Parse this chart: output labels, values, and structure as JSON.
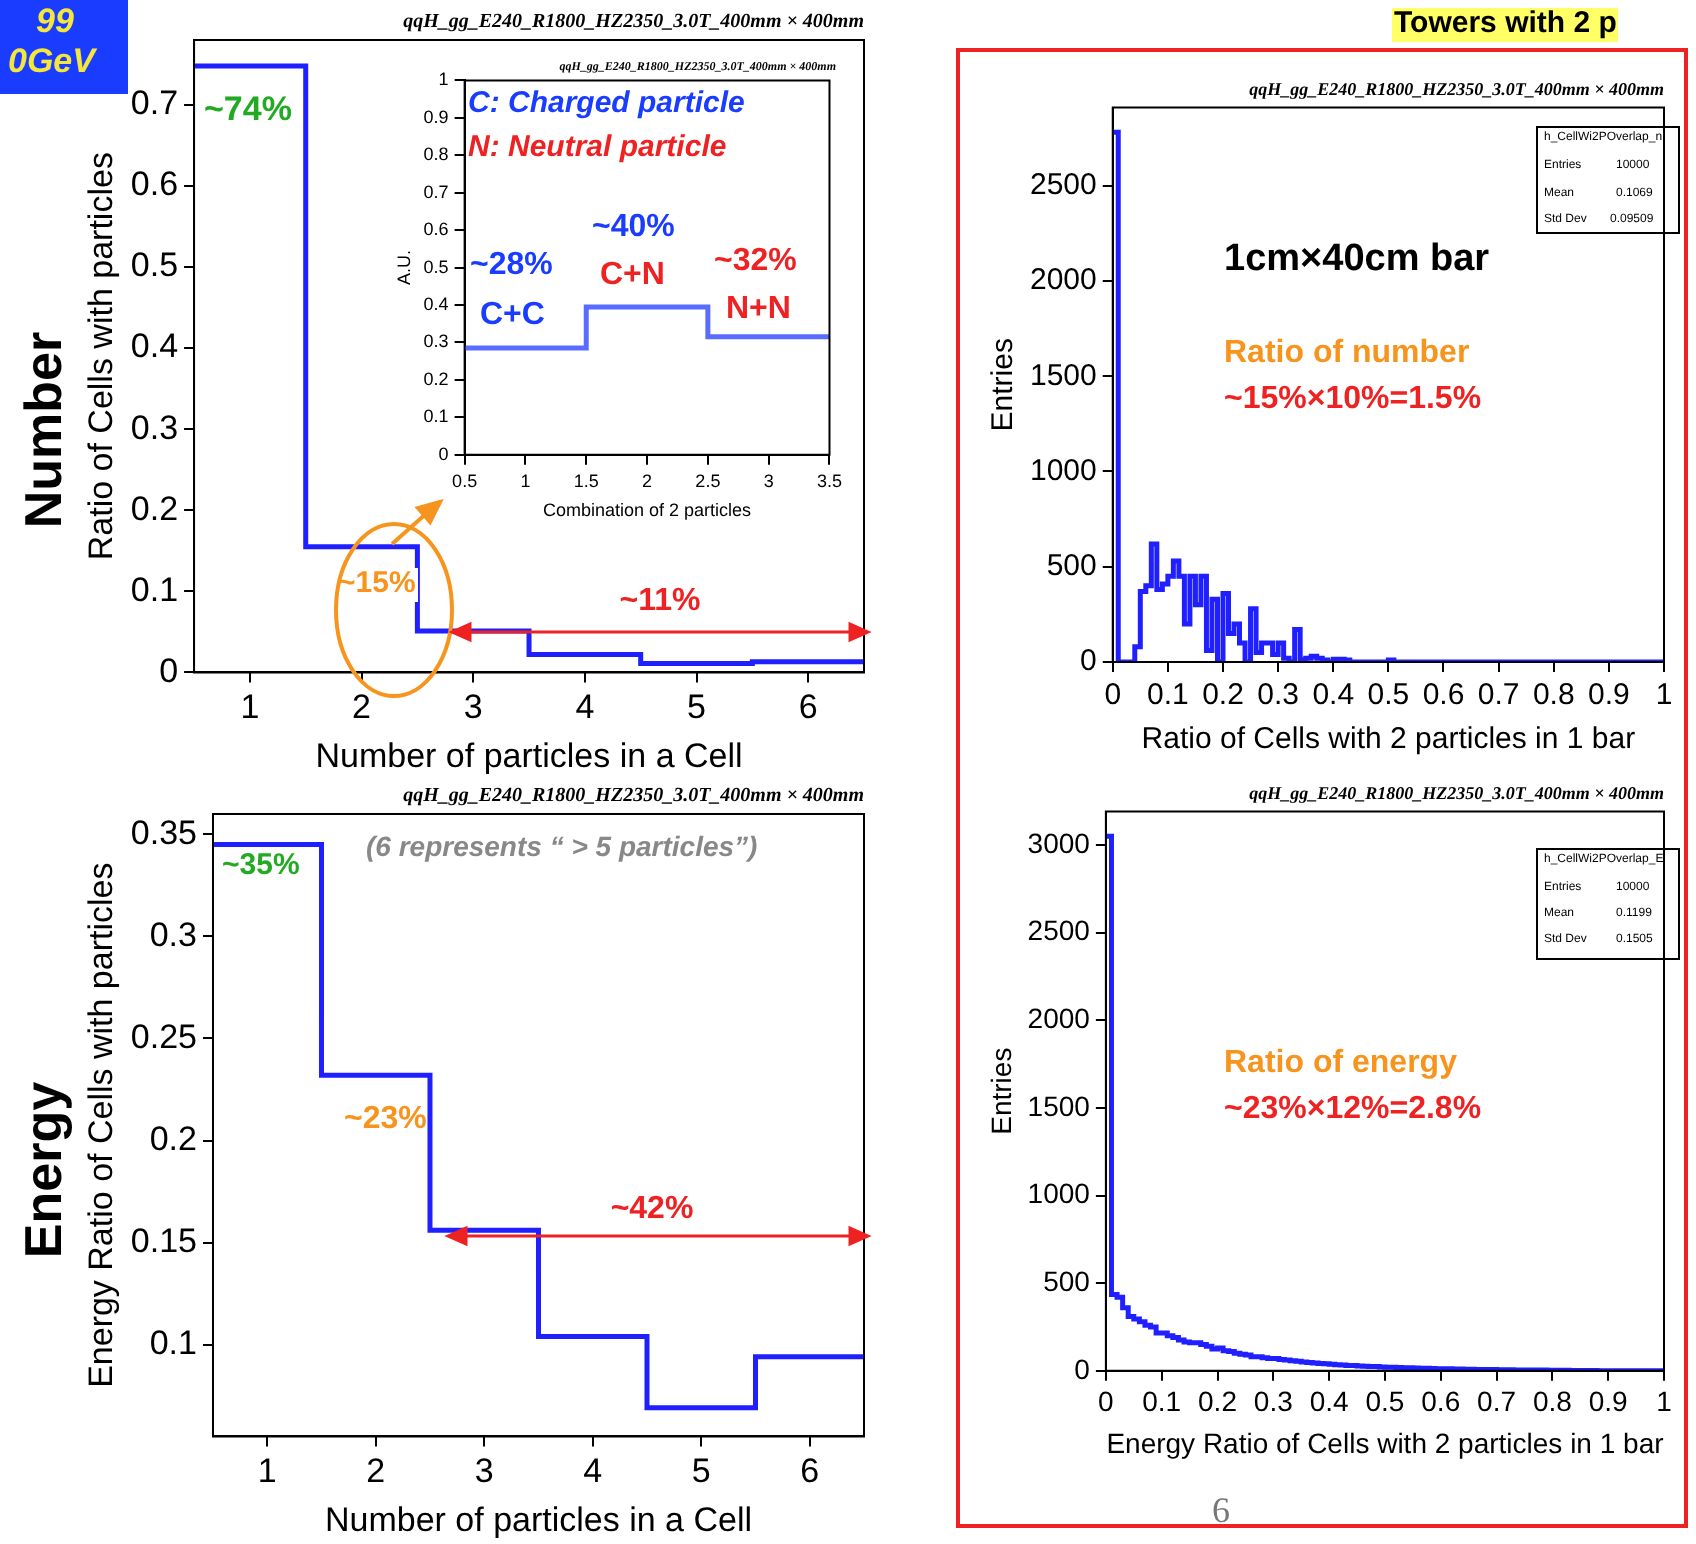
{
  "chart_data": [
    {
      "type": "histogram",
      "title": "qqH_gg_E240_R1800_HZ2350_3.0T_400mm × 400mm",
      "xlabel": "Number of particles in a Cell",
      "ylabel": "Ratio of Cells with particles",
      "bins": [
        0.5,
        1.5,
        2.5,
        3.5,
        4.5,
        5.5,
        6.5
      ],
      "values": [
        0.748,
        0.155,
        0.051,
        0.022,
        0.011,
        0.013
      ],
      "color": "#1f1fff",
      "xlim": [
        0.5,
        6.5
      ],
      "xticks": [
        1,
        2,
        3,
        4,
        5,
        6
      ],
      "ylim": [
        0,
        0.78
      ],
      "yticks": [
        0,
        0.1,
        0.2,
        0.3,
        0.4,
        0.5,
        0.6,
        0.7
      ],
      "annotations": [
        "~74%",
        "~15%",
        "~11%",
        "Number",
        "99",
        "0GeV"
      ]
    },
    {
      "type": "histogram",
      "title": "qqH_gg_E240_R1800_HZ2350_3.0T_400mm × 400mm",
      "xlabel": "Combination of 2 particles",
      "ylabel": "A.U.",
      "bins": [
        0.5,
        1.5,
        2.5,
        3.5
      ],
      "values": [
        0.285,
        0.395,
        0.315
      ],
      "color": "#5a6cff",
      "xlim": [
        0.5,
        3.5
      ],
      "xticks": [
        0.5,
        1,
        1.5,
        2,
        2.5,
        3,
        3.5
      ],
      "ylim": [
        0,
        1
      ],
      "yticks": [
        0,
        0.1,
        0.2,
        0.3,
        0.4,
        0.5,
        0.6,
        0.7,
        0.8,
        0.9,
        1
      ],
      "annotations": [
        "C: Charged particle",
        "N: Neutral particle",
        "~28%",
        "C+C",
        "~40%",
        "C+N",
        "~32%",
        "N+N"
      ]
    },
    {
      "type": "histogram",
      "title": "qqH_gg_E240_R1800_HZ2350_3.0T_400mm × 400mm",
      "xlabel": "Number of particles in a Cell",
      "ylabel": "Energy Ratio of Cells with particles",
      "bins": [
        0.5,
        1.5,
        2.5,
        3.5,
        4.5,
        5.5,
        6.5
      ],
      "values": [
        0.345,
        0.232,
        0.156,
        0.104,
        0.069,
        0.094
      ],
      "color": "#1f1fff",
      "xlim": [
        0.5,
        6.5
      ],
      "xticks": [
        1,
        2,
        3,
        4,
        5,
        6
      ],
      "ylim": [
        0.055,
        0.36
      ],
      "yticks": [
        0.1,
        0.15,
        0.2,
        0.25,
        0.3,
        0.35
      ],
      "annotations": [
        "~35%",
        "~23%",
        "~42%",
        "(6 represents “ > 5 particles”)",
        "Energy"
      ]
    },
    {
      "type": "histogram",
      "title": "qqH_gg_E240_R1800_HZ2350_3.0T_400mm × 400mm",
      "xlabel": "Ratio of Cells with 2 particles in 1 bar",
      "ylabel": "Entries",
      "bins": [
        0,
        0.01,
        0.02,
        0.03,
        0.04,
        0.05,
        0.06,
        0.07,
        0.08,
        0.09,
        0.1,
        0.11,
        0.12,
        0.13,
        0.14,
        0.15,
        0.16,
        0.17,
        0.18,
        0.19,
        0.2,
        0.21,
        0.22,
        0.23,
        0.24,
        0.25,
        0.26,
        0.27,
        0.28,
        0.29,
        0.3,
        0.31,
        0.32,
        0.33,
        0.34,
        0.35,
        0.36,
        0.37,
        0.38,
        0.39,
        0.4,
        0.41,
        0.42,
        0.43,
        0.44,
        0.45,
        0.46,
        0.47,
        0.48,
        0.49,
        0.5,
        0.51,
        0.52,
        0.53,
        0.54,
        0.55,
        0.56,
        0.57,
        0.58,
        0.59,
        0.6,
        0.61,
        0.62,
        0.63,
        0.64,
        0.65,
        0.66,
        0.67,
        0.68,
        0.69,
        0.7,
        0.71,
        0.72,
        0.73,
        0.74,
        0.75,
        0.76,
        0.77,
        0.78,
        0.79,
        0.8,
        0.81,
        0.82,
        0.83,
        0.84,
        0.85,
        0.86,
        0.87,
        0.88,
        0.89,
        0.9,
        0.91,
        0.92,
        0.93,
        0.94,
        0.95,
        0.96,
        0.97,
        0.98,
        0.99,
        1
      ],
      "values": [
        2780,
        0,
        0,
        0,
        80,
        370,
        400,
        620,
        380,
        410,
        450,
        530,
        450,
        200,
        450,
        300,
        450,
        60,
        330,
        0,
        360,
        150,
        200,
        100,
        0,
        280,
        50,
        100,
        100,
        40,
        100,
        20,
        0,
        170,
        10,
        20,
        30,
        20,
        10,
        0,
        15,
        15,
        10,
        0,
        0,
        0,
        0,
        0,
        0,
        0,
        10,
        0,
        0,
        0,
        0,
        0,
        0,
        0,
        0,
        0,
        0,
        0,
        0,
        0,
        0,
        0,
        0,
        0,
        0,
        0,
        0,
        0,
        0,
        0,
        0,
        0,
        0,
        0,
        0,
        0,
        0,
        0,
        0,
        0,
        0,
        0,
        0,
        0,
        0,
        0,
        0,
        0,
        0,
        0,
        0,
        0,
        0,
        0,
        0,
        0
      ],
      "color": "#1f1fff",
      "xlim": [
        0,
        1
      ],
      "xticks": [
        0,
        0.1,
        0.2,
        0.3,
        0.4,
        0.5,
        0.6,
        0.7,
        0.8,
        0.9,
        1
      ],
      "ylim": [
        0,
        2910
      ],
      "yticks": [
        0,
        500,
        1000,
        1500,
        2000,
        2500
      ],
      "annotations": [
        "Towers with 2 p",
        "h_CellWi2POverlap_n",
        "Entries",
        "10000",
        "Mean",
        "0.1069",
        "Std Dev",
        "0.09509",
        "1cm×40cm bar",
        "Ratio of number",
        "~15%×10%=1.5%"
      ]
    },
    {
      "type": "histogram",
      "title": "qqH_gg_E240_R1800_HZ2350_3.0T_400mm × 400mm",
      "xlabel": "Energy Ratio of Cells with 2 particles in 1 bar",
      "ylabel": "Entries",
      "bins": [
        0,
        0.01,
        0.02,
        0.03,
        0.04,
        0.05,
        0.06,
        0.07,
        0.08,
        0.09,
        0.1,
        0.11,
        0.12,
        0.13,
        0.14,
        0.15,
        0.16,
        0.17,
        0.18,
        0.19,
        0.2,
        0.21,
        0.22,
        0.23,
        0.24,
        0.25,
        0.26,
        0.27,
        0.28,
        0.29,
        0.3,
        0.31,
        0.32,
        0.33,
        0.34,
        0.35,
        0.36,
        0.37,
        0.38,
        0.39,
        0.4,
        0.41,
        0.42,
        0.43,
        0.44,
        0.45,
        0.46,
        0.47,
        0.48,
        0.49,
        0.5,
        0.51,
        0.52,
        0.53,
        0.54,
        0.55,
        0.56,
        0.57,
        0.58,
        0.59,
        0.6,
        0.61,
        0.62,
        0.63,
        0.64,
        0.65,
        0.66,
        0.67,
        0.68,
        0.69,
        0.7,
        0.71,
        0.72,
        0.73,
        0.74,
        0.75,
        0.76,
        0.77,
        0.78,
        0.79,
        0.8,
        0.81,
        0.82,
        0.83,
        0.84,
        0.85,
        0.86,
        0.87,
        0.88,
        0.89,
        0.9,
        0.91,
        0.92,
        0.93,
        0.94,
        0.95,
        0.96,
        0.97,
        0.98,
        0.99,
        1
      ],
      "values": [
        3050,
        435,
        420,
        360,
        310,
        295,
        280,
        260,
        250,
        215,
        215,
        200,
        190,
        175,
        165,
        160,
        160,
        150,
        140,
        125,
        130,
        115,
        110,
        100,
        95,
        90,
        80,
        80,
        75,
        70,
        70,
        65,
        62,
        58,
        55,
        50,
        48,
        45,
        42,
        40,
        38,
        35,
        33,
        30,
        30,
        28,
        26,
        25,
        24,
        22,
        20,
        20,
        19,
        18,
        17,
        16,
        15,
        14,
        13,
        12,
        12,
        11,
        10,
        10,
        9,
        9,
        8,
        8,
        7,
        7,
        6,
        6,
        6,
        5,
        5,
        5,
        4,
        4,
        4,
        3,
        3,
        3,
        3,
        2,
        2,
        2,
        2,
        2,
        1,
        1,
        1,
        1,
        1,
        1,
        1,
        1,
        1,
        1,
        0,
        0
      ],
      "color": "#1f1fff",
      "xlim": [
        0,
        1
      ],
      "xticks": [
        0,
        0.1,
        0.2,
        0.3,
        0.4,
        0.5,
        0.6,
        0.7,
        0.8,
        0.9,
        1
      ],
      "ylim": [
        0,
        3190
      ],
      "yticks": [
        0,
        500,
        1000,
        1500,
        2000,
        2500,
        3000
      ],
      "annotations": [
        "h_CellWi2POverlap_E",
        "Entries",
        "10000",
        "Mean",
        "0.1199",
        "Std Dev",
        "0.1505",
        "Ratio of energy",
        "~23%×12%=2.8%",
        "6"
      ]
    }
  ]
}
